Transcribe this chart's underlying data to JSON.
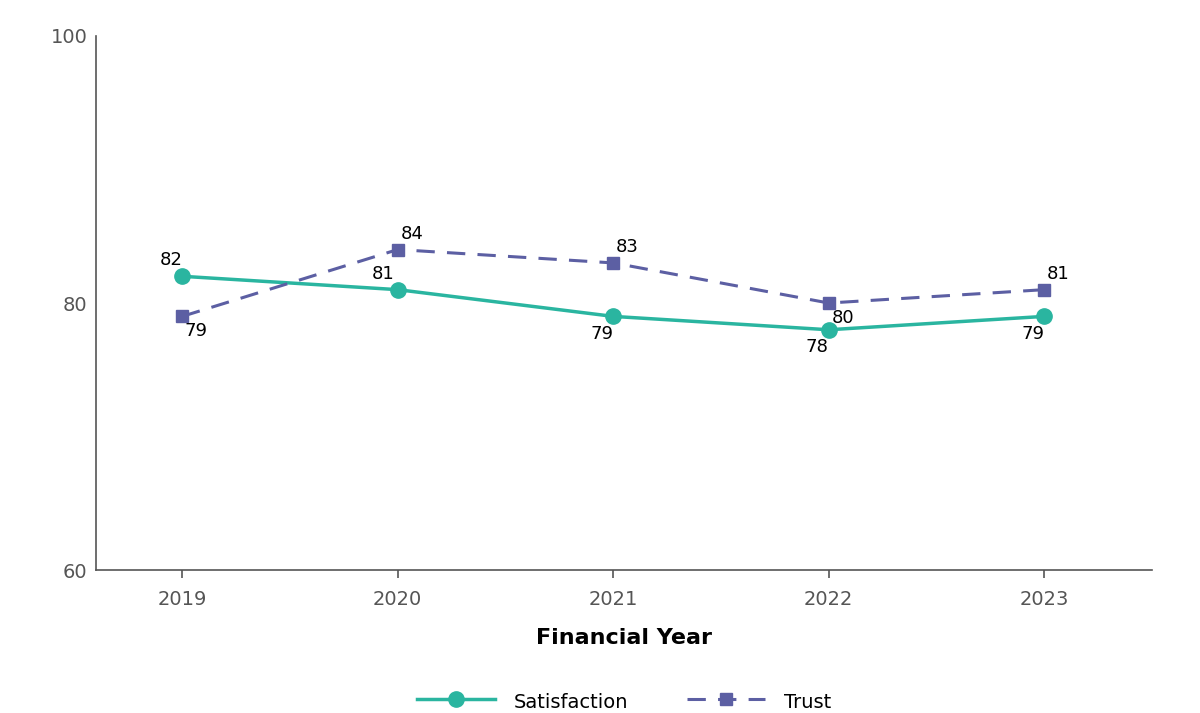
{
  "years": [
    2019,
    2020,
    2021,
    2022,
    2023
  ],
  "satisfaction": [
    82,
    81,
    79,
    78,
    79
  ],
  "trust": [
    79,
    84,
    83,
    80,
    81
  ],
  "satisfaction_color": "#2ab5a0",
  "trust_color": "#5c5fa3",
  "xlabel": "Financial Year",
  "ylim": [
    60,
    100
  ],
  "yticks": [
    60,
    80,
    100
  ],
  "background_color": "#ffffff",
  "satisfaction_label": "Satisfaction",
  "trust_label": "Trust",
  "label_fontsize": 14,
  "annotation_fontsize": 13,
  "xlabel_fontsize": 16,
  "tick_fontsize": 14,
  "spine_color": "#555555",
  "sat_annotations": {
    "va": [
      "bottom",
      "bottom",
      "top",
      "top",
      "top"
    ],
    "ha": [
      "right",
      "right",
      "right",
      "right",
      "right"
    ],
    "xoffset": [
      0,
      -2,
      0,
      0,
      0
    ],
    "yoffset": [
      5,
      5,
      -6,
      -6,
      -6
    ]
  },
  "trust_annotations": {
    "va": [
      "top",
      "bottom",
      "bottom",
      "top",
      "bottom"
    ],
    "ha": [
      "left",
      "left",
      "left",
      "left",
      "left"
    ],
    "xoffset": [
      2,
      2,
      2,
      2,
      2
    ],
    "yoffset": [
      -4,
      5,
      5,
      -4,
      5
    ]
  }
}
